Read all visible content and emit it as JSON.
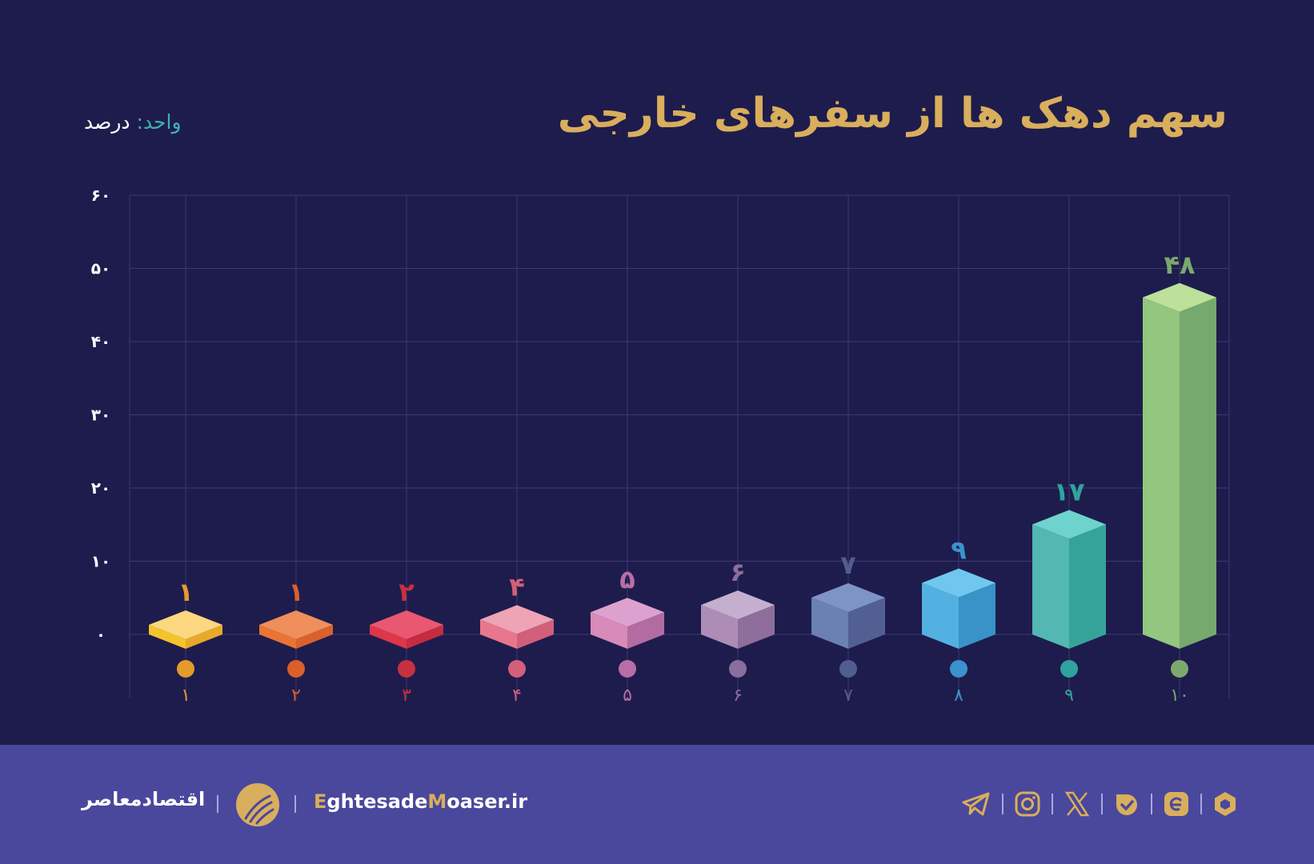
{
  "title": "سهم دهک ها از سفرهای خارجی",
  "unit": {
    "key": "واحد:",
    "value": "درصد"
  },
  "colors": {
    "background": "#1e1c4d",
    "footer": "#4a489c",
    "title": "#d9ae5c",
    "grid": "#3b3a70"
  },
  "chart_data": {
    "type": "bar",
    "style": "3d-isometric-prism",
    "categories": [
      "1",
      "2",
      "3",
      "4",
      "5",
      "6",
      "7",
      "8",
      "9",
      "10"
    ],
    "category_labels": [
      "۱",
      "۲",
      "۳",
      "۴",
      "۵",
      "۶",
      "۷",
      "۸",
      "۹",
      "۱۰"
    ],
    "values": [
      1,
      1,
      2,
      4,
      5,
      6,
      7,
      9,
      17,
      48
    ],
    "value_labels": [
      "۱",
      "۱",
      "۲",
      "۴",
      "۵",
      "۶",
      "۷",
      "۹",
      "۱۷",
      "۴۸"
    ],
    "ylim": [
      0,
      60
    ],
    "yticks": [
      0,
      10,
      20,
      30,
      40,
      50,
      60
    ],
    "ytick_labels": [
      "۰",
      "۱۰",
      "۲۰",
      "۳۰",
      "۴۰",
      "۵۰",
      "۶۰"
    ],
    "grid": true,
    "bar_colors": [
      {
        "top": "#fcd77f",
        "left": "#f5c42a",
        "right": "#e8a92a",
        "dot": "#e39b2b"
      },
      {
        "top": "#f08e5c",
        "left": "#ea7433",
        "right": "#d8612c",
        "dot": "#d9602b"
      },
      {
        "top": "#ea5770",
        "left": "#e03649",
        "right": "#c62c40",
        "dot": "#c8303f"
      },
      {
        "top": "#eea4b4",
        "left": "#e8778e",
        "right": "#d15f7a",
        "dot": "#d35f7a"
      },
      {
        "top": "#dda1d0",
        "left": "#d88ab9",
        "right": "#b26ca2",
        "dot": "#b76ea7"
      },
      {
        "top": "#c4afcf",
        "left": "#ad8db5",
        "right": "#8e6e9b",
        "dot": "#8a6e9d"
      },
      {
        "top": "#7e94c7",
        "left": "#6b80b3",
        "right": "#525f93",
        "dot": "#525d8f"
      },
      {
        "top": "#6fc7ef",
        "left": "#52b1e1",
        "right": "#3893c8",
        "dot": "#3a93cc"
      },
      {
        "top": "#6ed3cc",
        "left": "#52b8b1",
        "right": "#36a39a",
        "dot": "#2fa39c"
      },
      {
        "top": "#bde09a",
        "left": "#93c67e",
        "right": "#76a96e",
        "dot": "#7ba96c"
      }
    ]
  },
  "footer": {
    "brand": "اقتصادمعاصر",
    "site_part1": "E",
    "site_part2": "ghtesade",
    "site_part3": "M",
    "site_part4": "oaser.ir",
    "icons": [
      "telegram-icon",
      "instagram-icon",
      "x-icon",
      "bale-icon",
      "eitaa-icon",
      "rubika-icon"
    ]
  }
}
